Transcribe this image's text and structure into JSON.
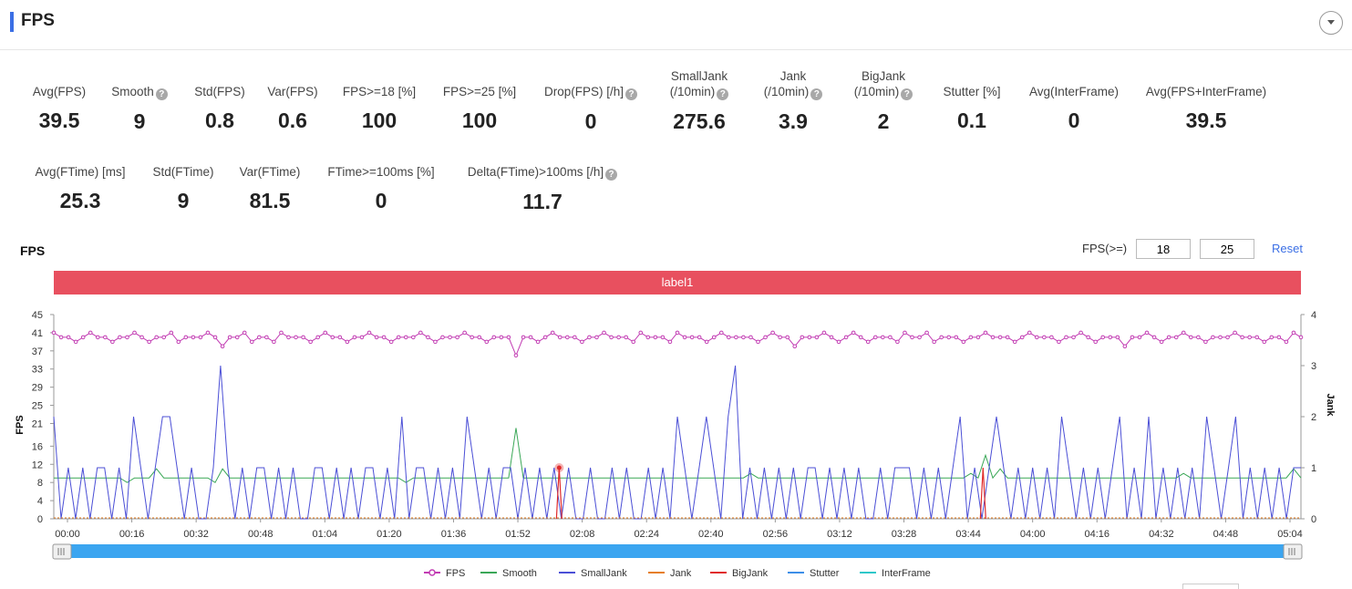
{
  "header": {
    "title": "FPS",
    "collapse_icon": "chevron-down-icon"
  },
  "metrics_row1": [
    {
      "label": "Avg(FPS)",
      "value": "39.5",
      "help": false
    },
    {
      "label": "Smooth",
      "value": "9",
      "help": true
    },
    {
      "label": "Std(FPS)",
      "value": "0.8",
      "help": false
    },
    {
      "label": "Var(FPS)",
      "value": "0.6",
      "help": false
    },
    {
      "label": "FPS>=18 [%]",
      "value": "100",
      "help": false
    },
    {
      "label": "FPS>=25 [%]",
      "value": "100",
      "help": false
    },
    {
      "label": "Drop(FPS) [/h]",
      "value": "0",
      "help": true
    },
    {
      "label": "SmallJank\n(/10min)",
      "value": "275.6",
      "help": true
    },
    {
      "label": "Jank\n(/10min)",
      "value": "3.9",
      "help": true
    },
    {
      "label": "BigJank\n(/10min)",
      "value": "2",
      "help": true
    },
    {
      "label": "Stutter [%]",
      "value": "0.1",
      "help": false
    },
    {
      "label": "Avg(InterFrame)",
      "value": "0",
      "help": false
    },
    {
      "label": "Avg(FPS+InterFrame)",
      "value": "39.5",
      "help": false
    }
  ],
  "metrics_row2": [
    {
      "label": "Avg(FTime) [ms]",
      "value": "25.3",
      "help": false
    },
    {
      "label": "Std(FTime)",
      "value": "9",
      "help": false
    },
    {
      "label": "Var(FTime)",
      "value": "81.5",
      "help": false
    },
    {
      "label": "FTime>=100ms [%]",
      "value": "0",
      "help": false
    },
    {
      "label": "Delta(FTime)>100ms [/h]",
      "value": "11.7",
      "help": true
    }
  ],
  "chart_controls": {
    "title": "FPS",
    "threshold_label": "FPS(>=)",
    "threshold_low": "18",
    "threshold_high": "25",
    "reset_label": "Reset"
  },
  "label_bar": {
    "text": "label1",
    "color": "#e8505f"
  },
  "chart_data": {
    "type": "line",
    "ylabel": "FPS",
    "y2label": "Jank",
    "yticks": [
      0,
      4,
      8,
      12,
      16,
      21,
      25,
      29,
      33,
      37,
      41,
      45
    ],
    "ylim": [
      0,
      45
    ],
    "y2ticks": [
      0,
      1,
      2,
      3,
      4
    ],
    "y2lim": [
      0,
      4
    ],
    "xticks": [
      "00:00",
      "00:16",
      "00:32",
      "00:48",
      "01:04",
      "01:20",
      "01:36",
      "01:52",
      "02:08",
      "02:24",
      "02:40",
      "02:56",
      "03:12",
      "03:28",
      "03:44",
      "04:00",
      "04:16",
      "04:32",
      "04:48",
      "05:04"
    ],
    "x_range_seconds": [
      0,
      306
    ],
    "series": [
      {
        "name": "FPS",
        "axis": "left",
        "color": "#c23cb3",
        "marker": "circle",
        "approx_mean": 40,
        "values": [
          41,
          40,
          40,
          39,
          40,
          41,
          40,
          40,
          39,
          40,
          40,
          41,
          40,
          39,
          40,
          40,
          41,
          39,
          40,
          40,
          40,
          41,
          40,
          38,
          40,
          40,
          41,
          39,
          40,
          40,
          39,
          41,
          40,
          40,
          40,
          39,
          40,
          41,
          40,
          40,
          39,
          40,
          40,
          41,
          40,
          40,
          39,
          40,
          40,
          40,
          41,
          40,
          39,
          40,
          40,
          40,
          41,
          40,
          40,
          39,
          40,
          40,
          40,
          36,
          40,
          40,
          39,
          40,
          41,
          40,
          40,
          40,
          39,
          40,
          40,
          41,
          40,
          40,
          40,
          39,
          41,
          40,
          40,
          40,
          39,
          41,
          40,
          40,
          40,
          39,
          40,
          41,
          40,
          40,
          40,
          40,
          39,
          40,
          41,
          40,
          40,
          38,
          40,
          40,
          40,
          41,
          40,
          39,
          40,
          41,
          40,
          39,
          40,
          40,
          40,
          39,
          41,
          40,
          40,
          41,
          39,
          40,
          40,
          40,
          39,
          40,
          40,
          41,
          40,
          40,
          40,
          39,
          40,
          41,
          40,
          40,
          40,
          39,
          40,
          40,
          41,
          40,
          39,
          40,
          40,
          40,
          38,
          40,
          40,
          41,
          40,
          39,
          40,
          40,
          41,
          40,
          40,
          39,
          40,
          40,
          40,
          41,
          40,
          40,
          40,
          39,
          40,
          40,
          39,
          41,
          40
        ]
      },
      {
        "name": "Smooth",
        "axis": "left",
        "color": "#3aa757",
        "values": [
          9,
          9,
          9,
          9,
          9,
          9,
          9,
          9,
          9,
          9,
          8,
          9,
          9,
          9,
          11,
          9,
          9,
          9,
          9,
          9,
          9,
          9,
          8,
          11,
          9,
          9,
          9,
          9,
          9,
          9,
          9,
          9,
          9,
          9,
          9,
          9,
          9,
          9,
          9,
          9,
          9,
          9,
          9,
          9,
          9,
          9,
          9,
          9,
          8,
          9,
          9,
          9,
          9,
          9,
          9,
          9,
          9,
          9,
          9,
          9,
          9,
          9,
          9,
          20,
          9,
          9,
          9,
          9,
          9,
          9,
          9,
          9,
          9,
          9,
          9,
          9,
          9,
          9,
          9,
          9,
          9,
          9,
          9,
          9,
          9,
          9,
          9,
          9,
          9,
          9,
          9,
          9,
          9,
          9,
          9,
          10,
          9,
          9,
          9,
          9,
          9,
          9,
          9,
          9,
          9,
          9,
          9,
          9,
          9,
          9,
          9,
          9,
          9,
          9,
          9,
          9,
          9,
          9,
          9,
          9,
          9,
          9,
          9,
          9,
          9,
          10,
          9,
          14,
          9,
          11,
          9,
          9,
          9,
          9,
          9,
          9,
          9,
          9,
          9,
          9,
          9,
          9,
          9,
          9,
          9,
          9,
          9,
          9,
          9,
          9,
          9,
          9,
          9,
          9,
          10,
          9,
          9,
          9,
          9,
          9,
          9,
          9,
          9,
          9,
          9,
          9,
          9,
          9,
          9,
          11,
          9
        ]
      },
      {
        "name": "SmallJank",
        "axis": "right",
        "color": "#4b4fd6",
        "values": [
          2,
          0,
          1,
          0,
          1,
          0,
          1,
          1,
          0,
          1,
          0,
          2,
          1,
          0,
          1,
          2,
          2,
          1,
          0,
          1,
          0,
          0,
          1,
          3,
          1,
          0,
          1,
          0,
          1,
          1,
          0,
          1,
          0,
          1,
          0,
          0,
          1,
          1,
          0,
          1,
          0,
          1,
          0,
          1,
          1,
          0,
          1,
          0,
          2,
          0,
          1,
          1,
          0,
          1,
          0,
          1,
          0,
          2,
          1,
          0,
          1,
          0,
          1,
          1,
          0,
          1,
          0,
          1,
          0,
          1,
          0,
          1,
          0,
          0,
          1,
          0,
          0,
          1,
          0,
          1,
          0,
          0,
          1,
          0,
          1,
          0,
          2,
          1,
          0,
          1,
          2,
          1,
          0,
          2,
          3,
          0,
          1,
          0,
          1,
          0,
          1,
          0,
          1,
          0,
          1,
          1,
          0,
          1,
          0,
          1,
          0,
          1,
          0,
          0,
          1,
          0,
          1,
          1,
          1,
          0,
          1,
          0,
          1,
          0,
          1,
          2,
          0,
          1,
          0,
          1,
          2,
          1,
          0,
          1,
          0,
          1,
          0,
          1,
          0,
          2,
          1,
          0,
          1,
          0,
          1,
          0,
          1,
          2,
          0,
          1,
          0,
          2,
          0,
          1,
          0,
          1,
          0,
          1,
          0,
          2,
          1,
          0,
          1,
          2,
          0,
          1,
          0,
          1,
          0,
          1,
          0,
          1,
          1
        ]
      },
      {
        "name": "Jank",
        "axis": "right",
        "color": "#e67e22",
        "values": []
      },
      {
        "name": "BigJank",
        "axis": "right",
        "color": "#e02b2b",
        "spikes_at": [
          "02:04",
          "03:48"
        ]
      },
      {
        "name": "Stutter",
        "axis": "right",
        "color": "#3d8ee8",
        "values": []
      },
      {
        "name": "InterFrame",
        "axis": "right",
        "color": "#2ec7c9",
        "values": []
      }
    ],
    "legend_position": "bottom",
    "grid": false
  }
}
